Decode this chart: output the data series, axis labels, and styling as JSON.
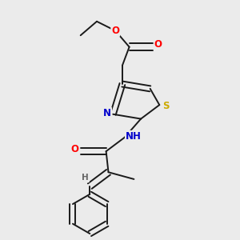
{
  "background_color": "#ebebeb",
  "bond_color": "#1a1a1a",
  "atom_colors": {
    "O": "#ff0000",
    "N": "#0000cc",
    "S": "#ccaa00",
    "H": "#666666",
    "C": "#1a1a1a"
  },
  "figsize": [
    3.0,
    3.0
  ],
  "dpi": 100
}
